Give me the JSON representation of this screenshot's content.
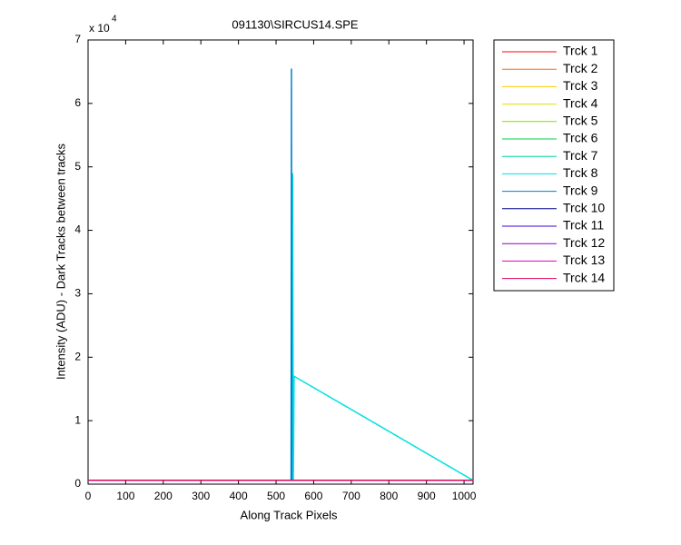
{
  "chart_data": {
    "type": "line",
    "title": "091130\\SIRCUS14.SPE",
    "xlabel": "Along Track Pixels",
    "ylabel": "Intensity (ADU) - Dark Tracks between tracks",
    "y_multiplier_base": "x 10",
    "y_multiplier_exponent": "4",
    "x": [
      1,
      540,
      541,
      542,
      544,
      546,
      548,
      1024
    ],
    "xlim": [
      0,
      1024
    ],
    "xticks": [
      0,
      100,
      200,
      300,
      400,
      500,
      600,
      700,
      800,
      900,
      1000
    ],
    "ylim": [
      0,
      7
    ],
    "yticks": [
      0,
      1,
      2,
      3,
      4,
      5,
      6,
      7
    ],
    "grid": false,
    "legend": "outside-right",
    "series": [
      {
        "name": "Trck 1",
        "color": "#ff0000",
        "values": [
          0.06,
          0.06,
          0.06,
          0.06,
          0.06,
          0.06,
          0.06,
          0.06
        ]
      },
      {
        "name": "Trck 2",
        "color": "#ff6a00",
        "values": [
          0.06,
          0.06,
          0.06,
          0.06,
          0.06,
          0.06,
          0.06,
          0.06
        ]
      },
      {
        "name": "Trck 3",
        "color": "#ffc800",
        "values": [
          0.06,
          0.06,
          0.06,
          0.06,
          0.06,
          0.06,
          0.06,
          0.06
        ]
      },
      {
        "name": "Trck 4",
        "color": "#e0e000",
        "values": [
          0.06,
          0.06,
          0.06,
          0.06,
          0.06,
          0.06,
          0.06,
          0.06
        ]
      },
      {
        "name": "Trck 5",
        "color": "#80e000",
        "values": [
          0.06,
          0.06,
          0.06,
          0.06,
          0.06,
          0.06,
          0.06,
          0.06
        ]
      },
      {
        "name": "Trck 6",
        "color": "#00d040",
        "values": [
          0.06,
          0.06,
          0.06,
          0.06,
          0.06,
          0.06,
          0.06,
          0.06
        ]
      },
      {
        "name": "Trck 7",
        "color": "#00d0a0",
        "values": [
          0.06,
          0.06,
          0.06,
          0.06,
          0.06,
          0.06,
          0.06,
          0.06
        ]
      },
      {
        "name": "Trck 8",
        "color": "#00e0e0",
        "values": [
          0.06,
          0.06,
          0.06,
          0.06,
          4.9,
          0.06,
          1.7,
          0.06
        ]
      },
      {
        "name": "Trck 9",
        "color": "#0080d0",
        "values": [
          0.06,
          0.06,
          6.55,
          0.06,
          0.06,
          0.06,
          0.06,
          0.06
        ]
      },
      {
        "name": "Trck 10",
        "color": "#000080",
        "values": [
          0.06,
          0.06,
          0.06,
          0.06,
          0.06,
          0.06,
          0.06,
          0.06
        ]
      },
      {
        "name": "Trck 11",
        "color": "#4000d0",
        "values": [
          0.06,
          0.06,
          0.06,
          0.06,
          0.06,
          0.06,
          0.06,
          0.06
        ]
      },
      {
        "name": "Trck 12",
        "color": "#9000c0",
        "values": [
          0.06,
          0.06,
          0.06,
          0.06,
          0.06,
          0.06,
          0.06,
          0.06
        ]
      },
      {
        "name": "Trck 13",
        "color": "#e000c0",
        "values": [
          0.06,
          0.06,
          0.06,
          0.06,
          0.06,
          0.06,
          0.06,
          0.06
        ]
      },
      {
        "name": "Trck 14",
        "color": "#e00060",
        "values": [
          0.06,
          0.06,
          0.06,
          0.06,
          0.06,
          0.06,
          0.06,
          0.06
        ]
      }
    ]
  }
}
